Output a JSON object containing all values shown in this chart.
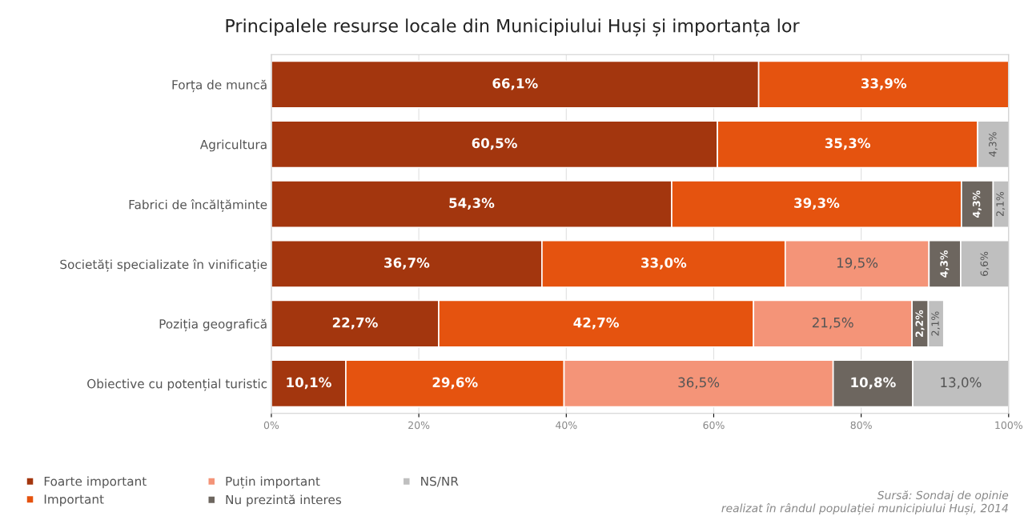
{
  "chart_data": {
    "type": "bar",
    "orientation": "horizontal",
    "stacked": true,
    "title": "Principalele resurse locale din Municipiului Huși și importanța lor",
    "categories": [
      "Forța de muncă",
      "Agricultura",
      "Fabrici de încălțăminte",
      "Societăți specializate în vinificație",
      "Poziția geografică",
      "Obiective cu potențial turistic"
    ],
    "series": [
      {
        "name": "Foarte important",
        "color": "#a3360e",
        "values": [
          66.1,
          60.5,
          54.3,
          36.7,
          22.7,
          10.1
        ],
        "value_labels": [
          "66,1%",
          "60,5%",
          "54,3%",
          "36,7%",
          "22,7%",
          "10,1%"
        ]
      },
      {
        "name": "Important",
        "color": "#e5530f",
        "values": [
          33.9,
          35.3,
          39.3,
          33.0,
          42.7,
          29.6
        ],
        "value_labels": [
          "33,9%",
          "35,3%",
          "39,3%",
          "33,0%",
          "42,7%",
          "29,6%"
        ]
      },
      {
        "name": "Puțin important",
        "color": "#f49478",
        "values": [
          null,
          null,
          null,
          19.5,
          21.5,
          36.5
        ],
        "value_labels": [
          null,
          null,
          null,
          "19,5%",
          "21,5%",
          "36,5%"
        ]
      },
      {
        "name": "Nu prezintă interes",
        "color": "#6d665f",
        "values": [
          null,
          null,
          4.3,
          4.3,
          2.2,
          10.8
        ],
        "value_labels": [
          null,
          null,
          "4,3%",
          "4,3%",
          "2,2%",
          "10,8%"
        ]
      },
      {
        "name": "NS/NR",
        "color": "#bfbfbf",
        "values": [
          null,
          4.3,
          2.1,
          6.6,
          2.1,
          13.0
        ],
        "value_labels": [
          null,
          "4,3%",
          "2,1%",
          "6,6%",
          "2,1%",
          "13,0%"
        ]
      }
    ],
    "xlim": [
      0,
      100
    ],
    "xticks": [
      {
        "value": 0,
        "label": "0%"
      },
      {
        "value": 20,
        "label": "20%"
      },
      {
        "value": 40,
        "label": "40%"
      },
      {
        "value": 60,
        "label": "60%"
      },
      {
        "value": 80,
        "label": "80%"
      },
      {
        "value": 100,
        "label": "100%"
      }
    ],
    "grid": "x",
    "legend": "bottom left",
    "annotations": [
      "Sursă: Sondaj de opinie\nrealizat în rândul populației municipiului Huși, 2014"
    ]
  }
}
